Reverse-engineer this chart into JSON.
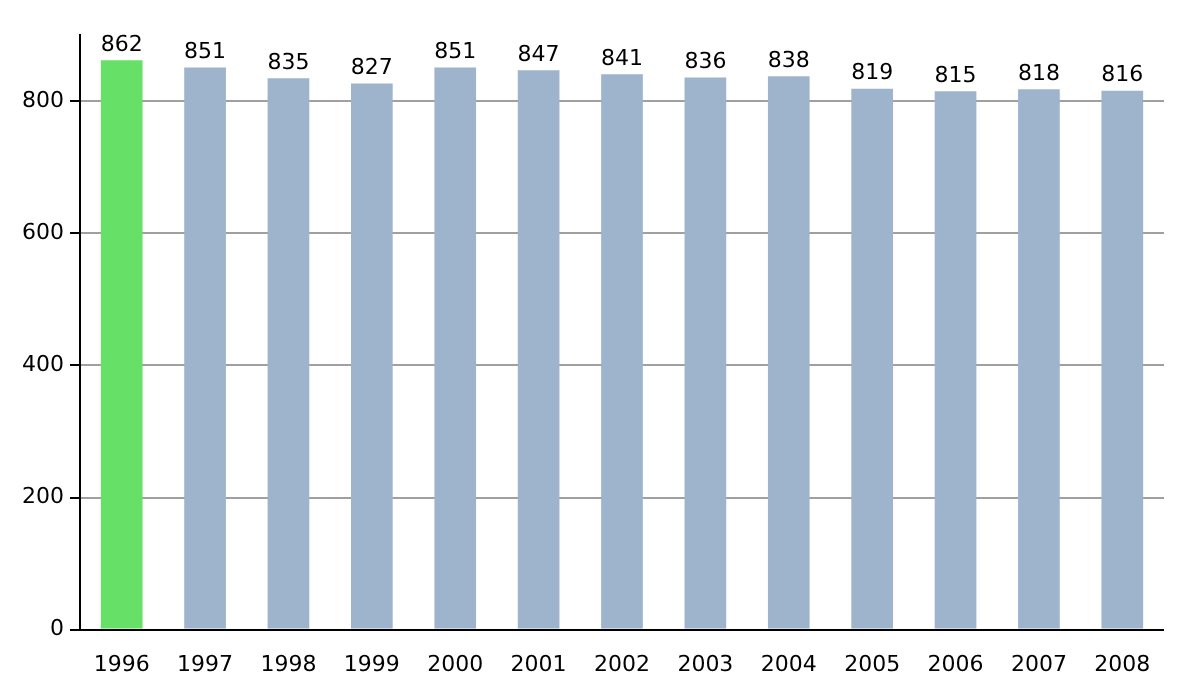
{
  "chart_data": {
    "type": "bar",
    "categories": [
      "1996",
      "1997",
      "1998",
      "1999",
      "2000",
      "2001",
      "2002",
      "2003",
      "2004",
      "2005",
      "2006",
      "2007",
      "2008"
    ],
    "values": [
      862,
      851,
      835,
      827,
      851,
      847,
      841,
      836,
      838,
      819,
      815,
      818,
      816
    ],
    "colors": [
      "#66e066",
      "#9db4cc",
      "#9db4cc",
      "#9db4cc",
      "#9db4cc",
      "#9db4cc",
      "#9db4cc",
      "#9db4cc",
      "#9db4cc",
      "#9db4cc",
      "#9db4cc",
      "#9db4cc",
      "#9db4cc"
    ],
    "ylim": [
      0,
      900
    ],
    "yticks": [
      0,
      200,
      400,
      600,
      800
    ],
    "grid": "y",
    "data_labels": true,
    "legend": false
  }
}
